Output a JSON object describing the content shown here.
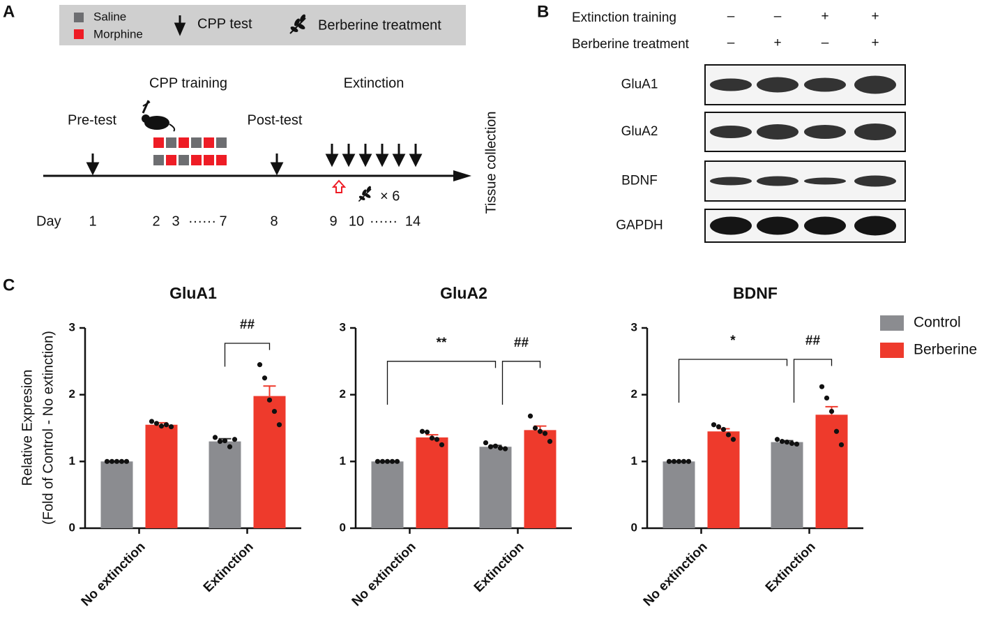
{
  "panel_labels": [
    "A",
    "B",
    "C"
  ],
  "timeline": {
    "legend": [
      "Saline",
      "Morphine",
      "CPP test",
      "Berberine treatment"
    ],
    "phases": [
      "Pre-test",
      "CPP training",
      "Post-test",
      "Extinction"
    ],
    "day_label": "Day",
    "days": [
      "1",
      "2",
      "3",
      "······",
      "7",
      "8",
      "9",
      "10",
      "······",
      "14"
    ],
    "repeat": "× 6",
    "end_label": "Tissue collection"
  },
  "blot": {
    "conditions": [
      "Extinction training",
      "Berberine treatment"
    ],
    "signs": [
      [
        "–",
        "–",
        "+",
        "+"
      ],
      [
        "–",
        "+",
        "–",
        "+"
      ]
    ],
    "proteins": [
      "GluA1",
      "GluA2",
      "BDNF",
      "GAPDH"
    ]
  },
  "chart_data": [
    {
      "type": "bar",
      "title": "GluA1",
      "ylabel": [
        "Relative Expresion",
        "(Fold of Control - No extinction)"
      ],
      "categories": [
        "No extinction",
        "Extinction"
      ],
      "series": [
        {
          "color": "#8b8c90",
          "values": [
            1.0,
            1.3
          ],
          "errors": [
            0,
            0.04
          ],
          "points": [
            [
              1.0,
              1.0,
              1.0,
              1.0,
              1.0
            ],
            [
              1.36,
              1.3,
              1.31,
              1.22,
              1.33
            ]
          ]
        },
        {
          "color": "#ee3a2c",
          "values": [
            1.55,
            1.98
          ],
          "errors": [
            0.03,
            0.15
          ],
          "points": [
            [
              1.6,
              1.57,
              1.53,
              1.55,
              1.52
            ],
            [
              2.45,
              2.25,
              1.92,
              1.75,
              1.55
            ]
          ]
        }
      ],
      "ylim": [
        0,
        3
      ],
      "yticks": [
        0,
        1,
        2,
        3
      ],
      "annotations": [
        "##"
      ]
    },
    {
      "type": "bar",
      "title": "GluA2",
      "categories": [
        "No extinction",
        "Extinction"
      ],
      "series": [
        {
          "color": "#8b8c90",
          "values": [
            1.0,
            1.22
          ],
          "errors": [
            0,
            0.02
          ],
          "points": [
            [
              1.0,
              1.0,
              1.0,
              1.0,
              1.0
            ],
            [
              1.28,
              1.22,
              1.23,
              1.2,
              1.19
            ]
          ]
        },
        {
          "color": "#ee3a2c",
          "values": [
            1.36,
            1.47
          ],
          "errors": [
            0.04,
            0.06
          ],
          "points": [
            [
              1.45,
              1.44,
              1.35,
              1.33,
              1.25
            ],
            [
              1.68,
              1.5,
              1.45,
              1.42,
              1.3
            ]
          ]
        }
      ],
      "ylim": [
        0,
        3
      ],
      "yticks": [
        0,
        1,
        2,
        3
      ],
      "annotations": [
        "**",
        "##"
      ]
    },
    {
      "type": "bar",
      "title": "BDNF",
      "categories": [
        "No extinction",
        "Extinction"
      ],
      "series": [
        {
          "name": "Control",
          "color": "#8b8c90",
          "values": [
            1.0,
            1.29
          ],
          "errors": [
            0,
            0.02
          ],
          "points": [
            [
              1.0,
              1.0,
              1.0,
              1.0,
              1.0
            ],
            [
              1.33,
              1.3,
              1.29,
              1.27,
              1.26
            ]
          ]
        },
        {
          "name": "Berberine",
          "color": "#ee3a2c",
          "values": [
            1.45,
            1.7
          ],
          "errors": [
            0.04,
            0.12
          ],
          "points": [
            [
              1.55,
              1.52,
              1.48,
              1.4,
              1.33
            ],
            [
              2.12,
              1.95,
              1.75,
              1.45,
              1.25
            ]
          ]
        }
      ],
      "ylim": [
        0,
        3
      ],
      "yticks": [
        0,
        1,
        2,
        3
      ],
      "annotations": [
        "*",
        "##"
      ],
      "legend": "right"
    }
  ]
}
